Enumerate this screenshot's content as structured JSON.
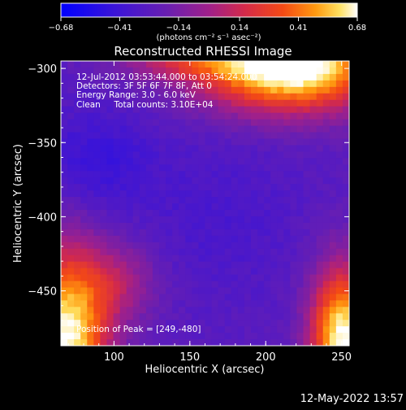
{
  "chart_data": {
    "type": "heatmap",
    "title": "Reconstructed RHESSI Image",
    "xlabel": "Heliocentric X (arcsec)",
    "ylabel": "Heliocentric Y (arcsec)",
    "xlim": [
      65,
      255
    ],
    "ylim": [
      -487,
      -295
    ],
    "x_ticks": [
      100,
      150,
      200,
      250
    ],
    "x_tick_labels": [
      "100",
      "150",
      "200",
      "250"
    ],
    "y_ticks": [
      -300,
      -350,
      -400,
      -450
    ],
    "y_tick_labels": [
      "−300",
      "−350",
      "−400",
      "−450"
    ],
    "colorbar": {
      "min": -0.68,
      "max": 0.68,
      "tick_values": [
        -0.68,
        -0.41,
        -0.14,
        0.14,
        0.41,
        0.68
      ],
      "tick_labels": [
        "−0.68",
        "−0.41",
        "−0.14",
        "0.14",
        "0.41",
        "0.68"
      ],
      "unit_label": "(photons cm⁻² s⁻¹ asec⁻²)"
    },
    "annotations": [
      "12-Jul-2012 03:53:44.000 to 03:54:24.000",
      "Detectors: 3F 5F 6F 7F 8F, Att 0",
      "Energy Range: 3.0 - 6.0 keV",
      "Clean     Total counts: 3.10E+04"
    ],
    "peak_label": "Position of Peak = [249,-480]",
    "peak_position": [
      249,
      -480
    ],
    "grid": false
  },
  "footer": {
    "timestamp": "12-May-2022 13:57"
  },
  "colors": {
    "background": "#000000",
    "foreground": "#ffffff",
    "low": "#2a1ef0",
    "mid": "#6a2a9e",
    "high": "#ffffff"
  }
}
